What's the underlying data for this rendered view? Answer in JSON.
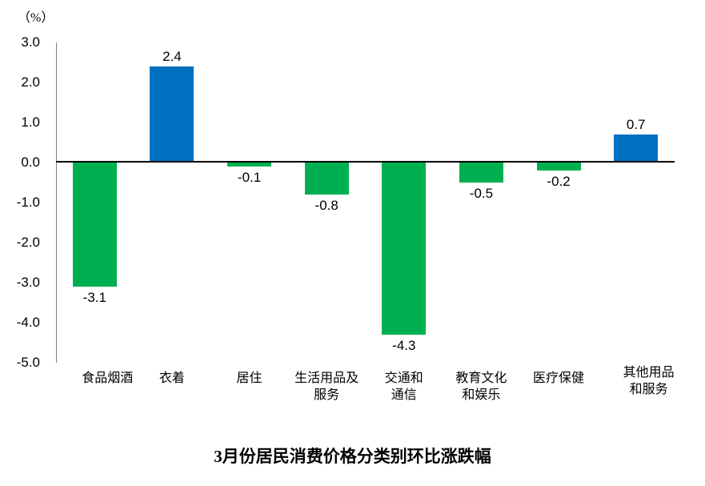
{
  "chart_data": {
    "type": "bar",
    "title": "3月份居民消费价格分类别环比涨跌幅",
    "ylabel": "（%）",
    "xlabel": "",
    "categories": [
      "食品烟酒",
      "衣着",
      "居住",
      "生活用品及服务",
      "交通和通信",
      "教育文化和娱乐",
      "医疗保健",
      "其他用品和服务"
    ],
    "category_lines": [
      [
        "食品烟酒"
      ],
      [
        "衣着"
      ],
      [
        "居住"
      ],
      [
        "生活用品及",
        "服务"
      ],
      [
        "交通和",
        "通信"
      ],
      [
        "教育文化",
        "和娱乐"
      ],
      [
        "医疗保健"
      ],
      [
        "其他用品",
        "和服务"
      ]
    ],
    "values": [
      -3.1,
      2.4,
      -0.1,
      -0.8,
      -4.3,
      -0.5,
      -0.2,
      0.7
    ],
    "data_labels": [
      "-3.1",
      "2.4",
      "-0.1",
      "-0.8",
      "-4.3",
      "-0.5",
      "-0.2",
      "0.7"
    ],
    "ylim": [
      -5.0,
      3.0
    ],
    "ytick_step": 1.0,
    "yticks": [
      "3.0",
      "2.0",
      "1.0",
      "0.0",
      "-1.0",
      "-2.0",
      "-3.0",
      "-4.0",
      "-5.0"
    ],
    "grid": false,
    "legend": "none",
    "colors": {
      "positive_bar": "#0070C0",
      "negative_bar": "#00B050",
      "axis_line": "#808080",
      "baseline": "#000000",
      "text": "#000000",
      "background": "#FFFFFF"
    }
  }
}
